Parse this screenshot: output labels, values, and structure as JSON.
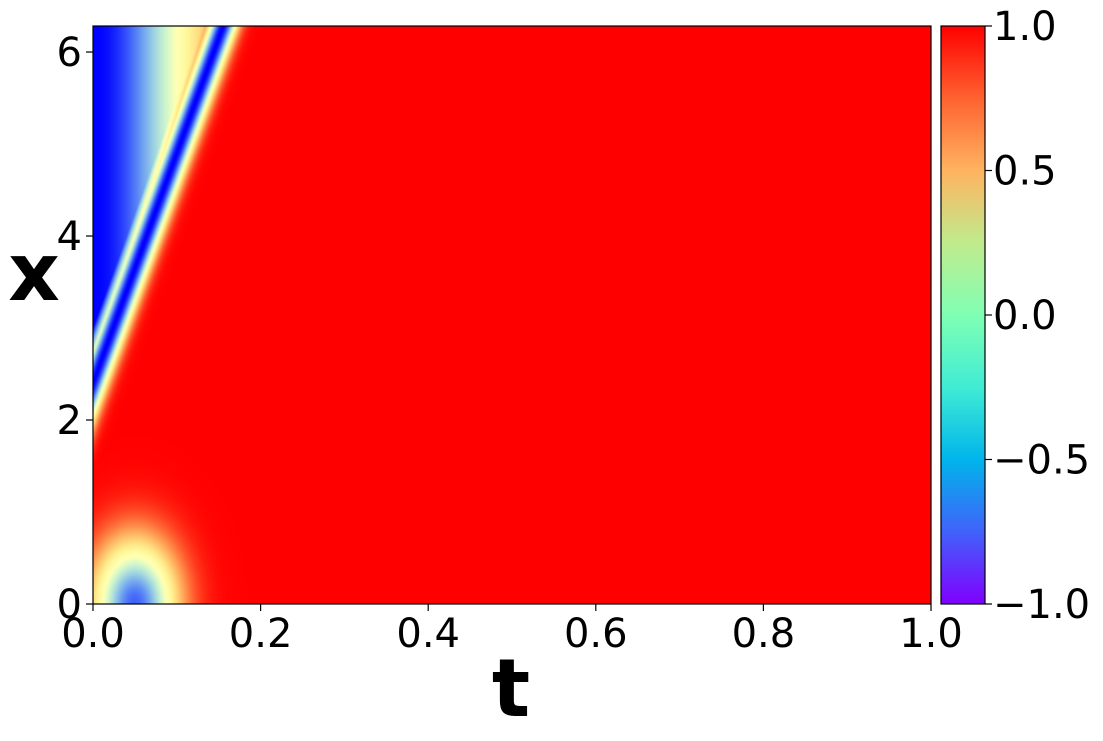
{
  "chart_data": {
    "type": "heatmap",
    "title": "",
    "xlabel": "t",
    "ylabel": "x",
    "xlim": [
      0.0,
      1.0
    ],
    "ylim": [
      0.0,
      6.283
    ],
    "x_ticks": [
      0.0,
      0.2,
      0.4,
      0.6,
      0.8,
      1.0
    ],
    "x_tick_labels": [
      "0.0",
      "0.2",
      "0.4",
      "0.6",
      "0.8",
      "1.0"
    ],
    "y_ticks": [
      0,
      2,
      4,
      6
    ],
    "y_tick_labels": [
      "0",
      "2",
      "4",
      "6"
    ],
    "colorbar": {
      "range": [
        -1.0,
        1.0
      ],
      "ticks": [
        1.0,
        0.5,
        0.0,
        -0.5,
        -1.0
      ],
      "tick_labels": [
        "1.0",
        "0.5",
        "0.0",
        "−0.5",
        "−1.0"
      ],
      "colormap": "rainbow",
      "placement": "right"
    },
    "features": [
      {
        "description": "low-value band",
        "t": 0.02,
        "x": 6.2,
        "value": -1.0
      },
      {
        "description": "low-value band",
        "t": 0.02,
        "x": 5.0,
        "value": -1.0
      },
      {
        "description": "low-value spot",
        "t": 0.05,
        "x": 0.05,
        "value": -0.7
      },
      {
        "description": "plateau",
        "t": 0.5,
        "x": 3.0,
        "value": 1.0
      }
    ],
    "grid": false
  },
  "colors": {
    "background": "#ffffff",
    "axis": "#000000",
    "max_color": "#ff0000",
    "min_color": "#8000ff"
  }
}
